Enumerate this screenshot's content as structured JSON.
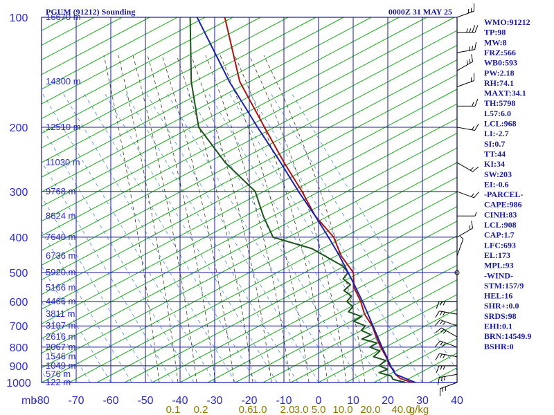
{
  "header": {
    "title_left": "PGUM (91212) Sounding",
    "title_right": "0000Z 31 MAY 25"
  },
  "chart_data": {
    "type": "skew-t",
    "pressure_axis": {
      "unit_label": "mb",
      "ticks": [
        100,
        200,
        300,
        400,
        500,
        600,
        700,
        800,
        900,
        1000
      ],
      "range": [
        100,
        1050
      ],
      "scale": "log"
    },
    "temperature_axis": {
      "ticks": [
        -80,
        -70,
        -60,
        -50,
        -40,
        -30,
        -20,
        -10,
        0,
        10,
        20,
        30,
        40
      ],
      "range": [
        -80,
        40
      ]
    },
    "height_labels": [
      {
        "p": 100,
        "text": "16670 m"
      },
      {
        "p": 150,
        "text": "14300 m"
      },
      {
        "p": 200,
        "text": "12510 m"
      },
      {
        "p": 250,
        "text": "11030 m"
      },
      {
        "p": 300,
        "text": "9768 m"
      },
      {
        "p": 350,
        "text": "8624 m"
      },
      {
        "p": 400,
        "text": "7640 m"
      },
      {
        "p": 450,
        "text": "6736 m"
      },
      {
        "p": 500,
        "text": "5920 m"
      },
      {
        "p": 550,
        "text": "5166 m"
      },
      {
        "p": 600,
        "text": "4466 m"
      },
      {
        "p": 650,
        "text": "3811 m"
      },
      {
        "p": 700,
        "text": "3197 m"
      },
      {
        "p": 750,
        "text": "2616 m"
      },
      {
        "p": 800,
        "text": "2067 m"
      },
      {
        "p": 850,
        "text": "1546 m"
      },
      {
        "p": 900,
        "text": "1049 m"
      },
      {
        "p": 950,
        "text": "576 m"
      },
      {
        "p": 1000,
        "text": "122 m"
      }
    ],
    "mixing_ratio_labels": [
      {
        "text": "0.1",
        "x": -42
      },
      {
        "text": "0.2",
        "x": -34
      },
      {
        "text": "0.6",
        "x": -21
      },
      {
        "text": "1.0",
        "x": -17
      },
      {
        "text": "2.0",
        "x": -9
      },
      {
        "text": "3.0",
        "x": -5
      },
      {
        "text": "5.0",
        "x": 0
      },
      {
        "text": "10.0",
        "x": 7
      },
      {
        "text": "20.0",
        "x": 15
      },
      {
        "text": "40.0",
        "x": 24
      },
      {
        "text": "g/kg",
        "x": 29
      }
    ],
    "series": [
      {
        "name": "temperature",
        "color": "#b01010",
        "points": [
          {
            "p": 1000,
            "t": 27.0
          },
          {
            "p": 975,
            "t": 23.0
          },
          {
            "p": 950,
            "t": 21.0
          },
          {
            "p": 925,
            "t": 19.8
          },
          {
            "p": 900,
            "t": 18.0
          },
          {
            "p": 850,
            "t": 15.6
          },
          {
            "p": 800,
            "t": 12.6
          },
          {
            "p": 750,
            "t": 9.8
          },
          {
            "p": 700,
            "t": 7.0
          },
          {
            "p": 650,
            "t": 3.0
          },
          {
            "p": 600,
            "t": 0.0
          },
          {
            "p": 550,
            "t": -4.0
          },
          {
            "p": 500,
            "t": -6.5
          },
          {
            "p": 450,
            "t": -12.5
          },
          {
            "p": 400,
            "t": -17.5
          },
          {
            "p": 350,
            "t": -26.0
          },
          {
            "p": 300,
            "t": -33.5
          },
          {
            "p": 250,
            "t": -43.0
          },
          {
            "p": 200,
            "t": -54.0
          },
          {
            "p": 150,
            "t": -68.0
          },
          {
            "p": 100,
            "t": -82.0
          }
        ]
      },
      {
        "name": "dewpoint",
        "color": "#1d531d",
        "points": [
          {
            "p": 1000,
            "t": 25.0
          },
          {
            "p": 980,
            "t": 21.0
          },
          {
            "p": 960,
            "t": 20.0
          },
          {
            "p": 940,
            "t": 16.0
          },
          {
            "p": 920,
            "t": 18.0
          },
          {
            "p": 900,
            "t": 15.0
          },
          {
            "p": 870,
            "t": 16.0
          },
          {
            "p": 850,
            "t": 12.0
          },
          {
            "p": 820,
            "t": 13.0
          },
          {
            "p": 800,
            "t": 9.5
          },
          {
            "p": 780,
            "t": 11.0
          },
          {
            "p": 760,
            "t": 6.0
          },
          {
            "p": 740,
            "t": 8.0
          },
          {
            "p": 720,
            "t": 4.5
          },
          {
            "p": 700,
            "t": 5.0
          },
          {
            "p": 680,
            "t": 1.0
          },
          {
            "p": 660,
            "t": 2.5
          },
          {
            "p": 640,
            "t": -2.0
          },
          {
            "p": 620,
            "t": -1.5
          },
          {
            "p": 600,
            "t": -4.0
          },
          {
            "p": 580,
            "t": -3.5
          },
          {
            "p": 560,
            "t": -6.5
          },
          {
            "p": 540,
            "t": -5.5
          },
          {
            "p": 520,
            "t": -8.5
          },
          {
            "p": 500,
            "t": -8.0
          },
          {
            "p": 480,
            "t": -10.5
          },
          {
            "p": 460,
            "t": -15.0
          },
          {
            "p": 430,
            "t": -22.0
          },
          {
            "p": 400,
            "t": -35.0
          },
          {
            "p": 350,
            "t": -41.0
          },
          {
            "p": 300,
            "t": -47.0
          },
          {
            "p": 250,
            "t": -60.0
          },
          {
            "p": 200,
            "t": -73.0
          },
          {
            "p": 150,
            "t": -82.0
          },
          {
            "p": 100,
            "t": -92.0
          }
        ]
      },
      {
        "name": "parcel",
        "color": "#1a22b0",
        "points": [
          {
            "p": 1000,
            "t": 28.0
          },
          {
            "p": 950,
            "t": 21.0
          },
          {
            "p": 900,
            "t": 18.2
          },
          {
            "p": 850,
            "t": 15.8
          },
          {
            "p": 800,
            "t": 13.0
          },
          {
            "p": 750,
            "t": 10.2
          },
          {
            "p": 700,
            "t": 7.2
          },
          {
            "p": 650,
            "t": 4.0
          },
          {
            "p": 600,
            "t": 0.5
          },
          {
            "p": 550,
            "t": -3.5
          },
          {
            "p": 500,
            "t": -8.0
          },
          {
            "p": 450,
            "t": -13.0
          },
          {
            "p": 400,
            "t": -19.0
          },
          {
            "p": 350,
            "t": -26.0
          },
          {
            "p": 300,
            "t": -34.5
          },
          {
            "p": 250,
            "t": -44.0
          },
          {
            "p": 200,
            "t": -56.0
          },
          {
            "p": 150,
            "t": -71.0
          },
          {
            "p": 100,
            "t": -90.0
          }
        ]
      }
    ],
    "wind_barbs": [
      {
        "p": 100,
        "spd": 15,
        "dir": 70
      },
      {
        "p": 110,
        "spd": 20,
        "dir": 90
      },
      {
        "p": 125,
        "spd": 15,
        "dir": 80
      },
      {
        "p": 140,
        "spd": 15,
        "dir": 60
      },
      {
        "p": 155,
        "spd": 10,
        "dir": 70
      },
      {
        "p": 175,
        "spd": 10,
        "dir": 90
      },
      {
        "p": 200,
        "spd": 10,
        "dir": 100
      },
      {
        "p": 250,
        "spd": 10,
        "dir": 120
      },
      {
        "p": 300,
        "spd": 10,
        "dir": 110
      },
      {
        "p": 350,
        "spd": 5,
        "dir": 90
      },
      {
        "p": 400,
        "spd": 10,
        "dir": 60
      },
      {
        "p": 450,
        "spd": 5,
        "dir": 20
      },
      {
        "p": 500,
        "spd": 0,
        "dir": 0
      },
      {
        "p": 600,
        "spd": 15,
        "dir": 270
      },
      {
        "p": 650,
        "spd": 15,
        "dir": 280
      },
      {
        "p": 700,
        "spd": 15,
        "dir": 290
      },
      {
        "p": 750,
        "spd": 15,
        "dir": 300
      },
      {
        "p": 800,
        "spd": 15,
        "dir": 290
      },
      {
        "p": 850,
        "spd": 15,
        "dir": 280
      },
      {
        "p": 900,
        "spd": 15,
        "dir": 270
      },
      {
        "p": 950,
        "spd": 15,
        "dir": 260
      },
      {
        "p": 1000,
        "spd": 15,
        "dir": 250
      }
    ]
  },
  "indices": [
    "WMO:91212",
    "TP:98",
    "MW:8",
    "FRZ:566",
    "WB0:593",
    "PW:2.18",
    "RH:74.1",
    "MAXT:34.1",
    "TH:5798",
    "L57:6.0",
    "LCL:968",
    "LI:-2.7",
    "SI:0.7",
    "TT:44",
    "KI:34",
    "SW:203",
    "EI:-0.6",
    "-PARCEL-",
    "CAPE:986",
    "CINH:83",
    "LCL:908",
    "CAP:1.7",
    "LFC:693",
    "EL:173",
    "MPL:93",
    "-WIND-",
    "STM:157/9",
    "HEL:16",
    "SHR+:0.0",
    "SRDS:98",
    "EHI:0.1",
    "BRN:14549.9",
    "BSHR:0"
  ],
  "colors": {
    "grid": "#1515b0",
    "dry_adiabat": "#1aa81a",
    "moist_adiabat": "#3a3a1a",
    "mixing_ratio": "#4a8ad8",
    "axis_text": "#2a2ad0",
    "mixing_text": "#8c7a00"
  }
}
